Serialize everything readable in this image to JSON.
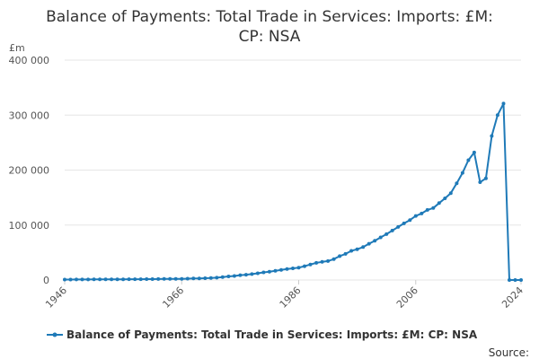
{
  "chart_data": {
    "type": "line",
    "title": [
      "Balance of Payments: Total Trade in Services: Imports: £M:",
      "CP: NSA"
    ],
    "ylabel": "£m",
    "ylim": [
      0,
      400000
    ],
    "yticks": [
      0,
      100000,
      200000,
      300000,
      400000
    ],
    "ytick_labels": [
      "0",
      "100 000",
      "200 000",
      "300 000",
      "400 000"
    ],
    "xlim": [
      1946,
      2024
    ],
    "xticks": [
      1946,
      1966,
      1986,
      2006,
      2024
    ],
    "xtick_labels": [
      "1946",
      "1966",
      "1986",
      "2006",
      "2024"
    ],
    "grid": true,
    "legend_position": "bottom",
    "source_label": "Source:",
    "color": "#1f7ab8",
    "series": [
      {
        "name": "Balance of Payments: Total Trade in Services: Imports: £M: CP: NSA",
        "x": [
          1946,
          1947,
          1948,
          1949,
          1950,
          1951,
          1952,
          1953,
          1954,
          1955,
          1956,
          1957,
          1958,
          1959,
          1960,
          1961,
          1962,
          1963,
          1964,
          1965,
          1966,
          1967,
          1968,
          1969,
          1970,
          1971,
          1972,
          1973,
          1974,
          1975,
          1976,
          1977,
          1978,
          1979,
          1980,
          1981,
          1982,
          1983,
          1984,
          1985,
          1986,
          1987,
          1988,
          1989,
          1990,
          1991,
          1992,
          1993,
          1994,
          1995,
          1996,
          1997,
          1998,
          1999,
          2000,
          2001,
          2002,
          2003,
          2004,
          2005,
          2006,
          2007,
          2008,
          2009,
          2010,
          2011,
          2012,
          2013,
          2014,
          2015,
          2016,
          2017,
          2018,
          2019,
          2020,
          2021,
          2022,
          2023,
          2024
        ],
        "values": [
          800,
          800,
          900,
          900,
          1000,
          1100,
          1100,
          1200,
          1200,
          1300,
          1300,
          1400,
          1400,
          1500,
          1600,
          1700,
          1800,
          1900,
          2000,
          2100,
          2200,
          2400,
          2700,
          3000,
          3300,
          3700,
          4200,
          5200,
          6500,
          7300,
          8800,
          9600,
          10700,
          12200,
          13800,
          15000,
          16600,
          18300,
          20000,
          21200,
          22500,
          25200,
          28300,
          31200,
          33000,
          34500,
          38000,
          43500,
          47500,
          53000,
          56000,
          60000,
          66000,
          71500,
          77500,
          83500,
          90000,
          96500,
          103000,
          109000,
          116500,
          121000,
          127500,
          131000,
          140000,
          148500,
          158000,
          176000,
          195000,
          218000,
          232000,
          178000,
          185000,
          262000,
          300000,
          321000,
          0,
          0,
          0
        ]
      }
    ]
  }
}
